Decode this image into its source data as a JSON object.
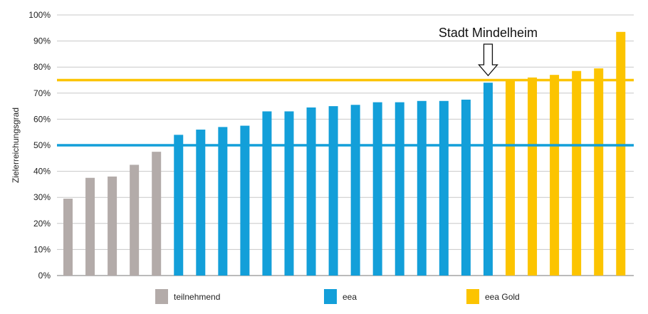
{
  "chart_data": {
    "type": "bar",
    "ylabel": "Zielerreichungsgrad",
    "ylim": [
      0,
      100
    ],
    "yticks": [
      "0%",
      "10%",
      "20%",
      "30%",
      "40%",
      "50%",
      "60%",
      "70%",
      "80%",
      "90%",
      "100%"
    ],
    "grid": "horizontal",
    "legend_position": "bottom",
    "series": [
      {
        "name": "teilnehmend",
        "color": "#b3aba9",
        "values": [
          29.5,
          37.5,
          38,
          42.5,
          47.5
        ]
      },
      {
        "name": "eea",
        "color": "#139fd9",
        "values": [
          54,
          56,
          57,
          57.5,
          63,
          63,
          64.5,
          65,
          65.5,
          66.5,
          66.5,
          67,
          67,
          67.5,
          74
        ]
      },
      {
        "name": "eea Gold",
        "color": "#fcc400",
        "values": [
          75,
          76,
          77,
          78.5,
          79.5,
          93.5
        ]
      }
    ],
    "reference_lines": [
      {
        "value": 75,
        "color": "#fcc400"
      },
      {
        "value": 50,
        "color": "#139fd9"
      }
    ],
    "annotation": {
      "text": "Stadt Mindelheim",
      "target_series": 1,
      "target_index": 14
    }
  }
}
